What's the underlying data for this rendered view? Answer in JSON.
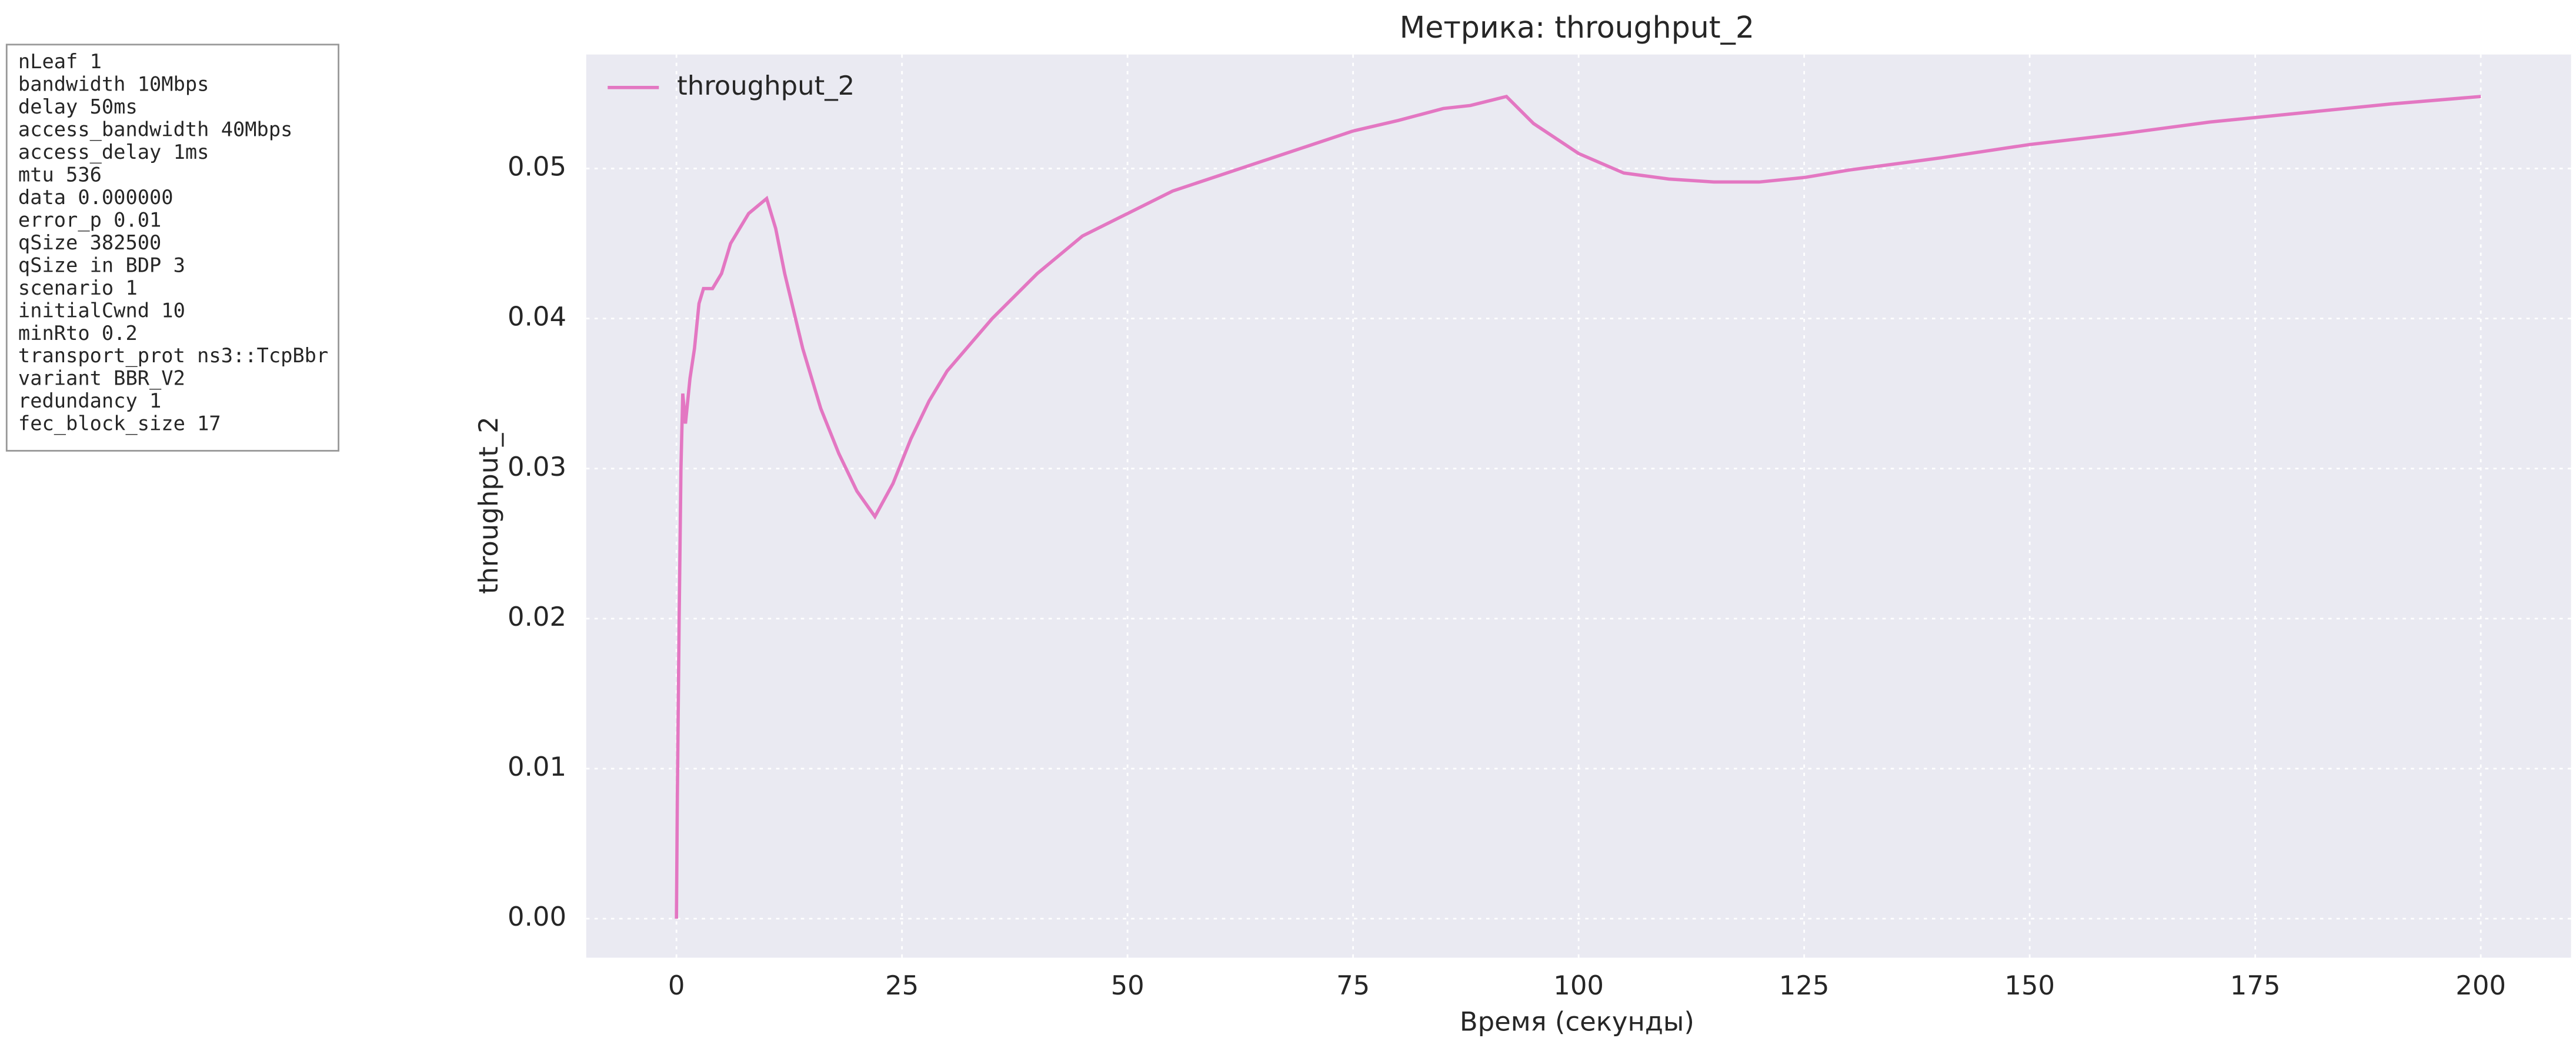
{
  "info_box": {
    "lines": [
      "nLeaf 1",
      "bandwidth 10Mbps",
      "delay  50ms",
      "access_bandwidth 40Mbps",
      "access_delay 1ms",
      "mtu 536",
      "data  0.000000",
      "error_p 0.01",
      "qSize 382500",
      "qSize in BDP 3",
      "scenario 1",
      "initialCwnd  10",
      "minRto 0.2",
      "transport_prot ns3::TcpBbr",
      "variant BBR_V2",
      "redundancy 1",
      "fec_block_size 17"
    ]
  },
  "chart_data": {
    "type": "line",
    "title": "Метрика: throughput_2",
    "x_label": "Время (секунды)",
    "y_label": "throughput_2",
    "x": [
      0,
      0.1,
      0.3,
      0.5,
      0.7,
      1,
      1.5,
      2,
      2.5,
      3,
      4,
      5,
      6,
      7,
      8,
      9,
      10,
      11,
      12,
      14,
      16,
      18,
      20,
      22,
      24,
      26,
      28,
      30,
      35,
      40,
      45,
      50,
      55,
      60,
      65,
      70,
      75,
      80,
      85,
      88,
      92,
      95,
      100,
      105,
      110,
      115,
      120,
      125,
      130,
      140,
      150,
      160,
      170,
      180,
      190,
      200
    ],
    "series": [
      {
        "name": "throughput_2",
        "color": "#e377c2",
        "values": [
          0,
          0.008,
          0.02,
          0.03,
          0.035,
          0.033,
          0.036,
          0.038,
          0.041,
          0.042,
          0.042,
          0.043,
          0.045,
          0.046,
          0.047,
          0.0475,
          0.048,
          0.046,
          0.043,
          0.038,
          0.034,
          0.031,
          0.0285,
          0.0268,
          0.029,
          0.032,
          0.0345,
          0.0365,
          0.04,
          0.043,
          0.0455,
          0.047,
          0.0485,
          0.0495,
          0.0505,
          0.0515,
          0.0525,
          0.0532,
          0.054,
          0.0542,
          0.0548,
          0.053,
          0.051,
          0.0497,
          0.0493,
          0.0491,
          0.0491,
          0.0494,
          0.0499,
          0.0507,
          0.0516,
          0.0523,
          0.0531,
          0.0537,
          0.0543,
          0.0548
        ]
      }
    ],
    "xlim": [
      -10,
      210
    ],
    "xticks": [
      0,
      25,
      50,
      75,
      100,
      125,
      150,
      175,
      200
    ],
    "ylim": [
      -0.0026,
      0.0576
    ],
    "yticks": [
      {
        "value": 0,
        "label": "0.00"
      },
      0.01,
      0.02,
      0.03,
      0.04,
      0.05
    ],
    "grid": true,
    "legend": "upper-left"
  }
}
